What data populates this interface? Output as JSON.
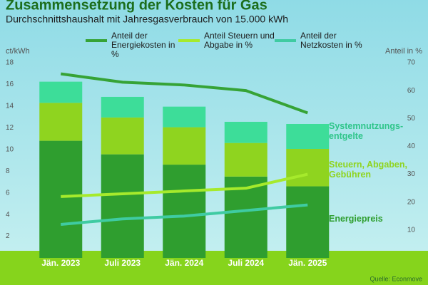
{
  "chart_data": {
    "type": "bar",
    "stacked": true,
    "title": "Zusammensetzung der Kosten für Gas",
    "subtitle": "Durchschnittshaushalt mit Jahresgasverbrauch von 15.000 kWh",
    "y_label": "ct/kWh",
    "y2_label": "Anteil in %",
    "source": "Quelle: Econmove",
    "categories": [
      "Jän. 2023",
      "Juli 2023",
      "Jän. 2024",
      "Juli 2024",
      "Jän. 2025"
    ],
    "ylim": [
      0,
      18
    ],
    "yticks": [
      2,
      4,
      6,
      8,
      10,
      12,
      14,
      16,
      18
    ],
    "y2lim": [
      0,
      70
    ],
    "y2ticks": [
      10,
      20,
      30,
      40,
      50,
      60,
      70
    ],
    "grid": false,
    "series": [
      {
        "name": "Energiepreis",
        "type": "bar",
        "color": "#2f9e2f",
        "label_color": "#2f9e2f",
        "values": [
          10.8,
          9.55,
          8.6,
          7.5,
          6.6
        ]
      },
      {
        "name": "Steuern, Abgaben, Gebühren",
        "type": "bar",
        "color": "#8fd41f",
        "label_color": "#8fd41f",
        "values": [
          3.5,
          3.4,
          3.45,
          3.1,
          3.45
        ]
      },
      {
        "name": "Systemnutzungs-entgelte",
        "type": "bar",
        "color": "#3ddd99",
        "label_color": "#2fc58a",
        "values": [
          1.95,
          1.9,
          1.9,
          1.95,
          2.3
        ]
      },
      {
        "name": "Anteil der Energiekosten in %",
        "type": "line",
        "axis": "y2",
        "color": "#36a336",
        "values": [
          66,
          63,
          62,
          60,
          52
        ]
      },
      {
        "name": "Anteil Steuern und Abgabe in %",
        "type": "line",
        "axis": "y2",
        "color": "#a6ea2c",
        "values": [
          22,
          23,
          24,
          25,
          30
        ]
      },
      {
        "name": "Anteil der Netzkosten in %",
        "type": "line",
        "axis": "y2",
        "color": "#3fcba2",
        "values": [
          12,
          14,
          15,
          17,
          19
        ]
      }
    ]
  }
}
